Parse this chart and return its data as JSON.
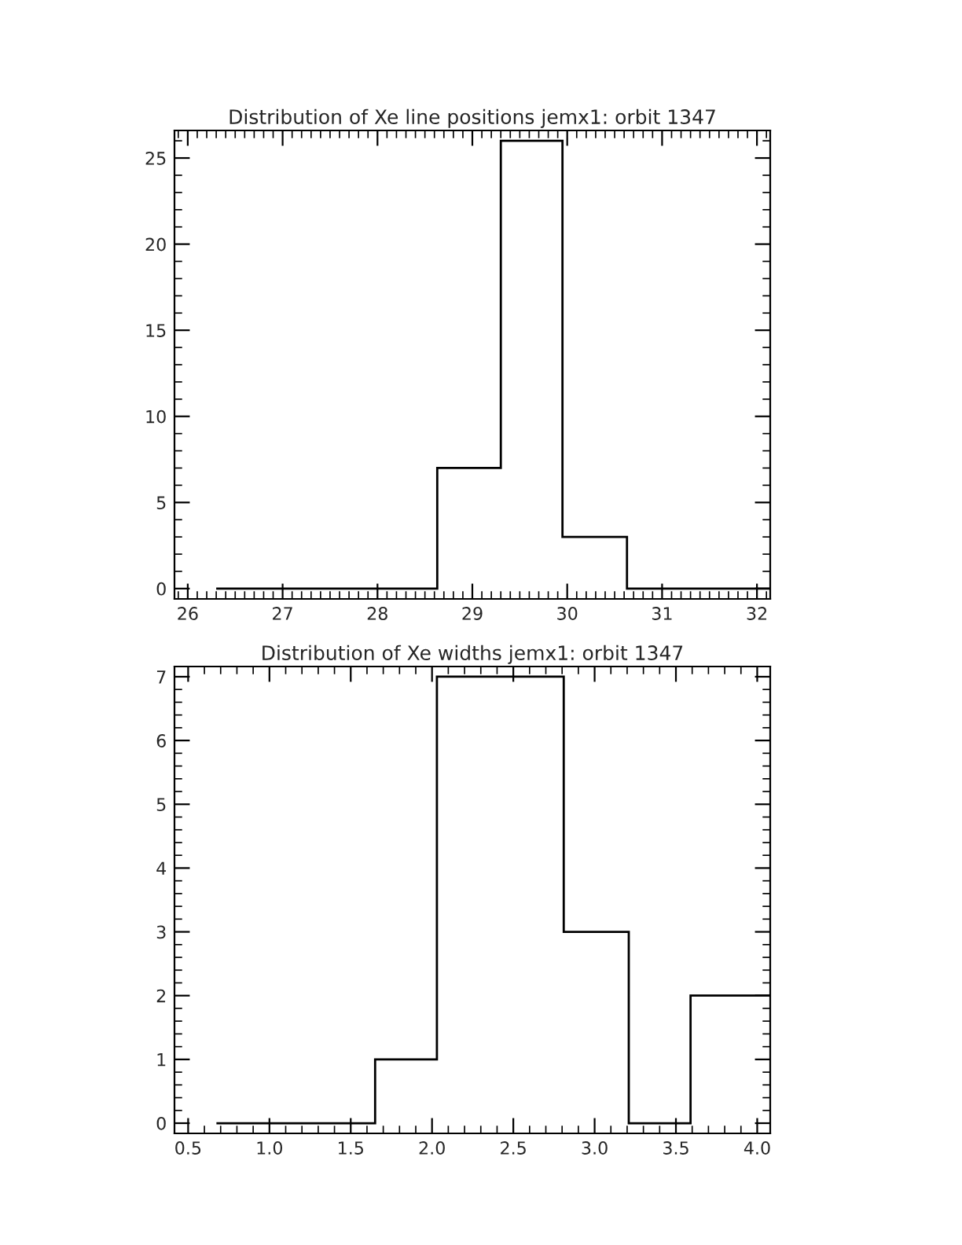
{
  "chart_data": [
    {
      "type": "histogram",
      "title": "Distribution of Xe line positions jemx1: orbit 1347",
      "bins": [
        26.3,
        28.63,
        29.3,
        29.95,
        30.63,
        32.14
      ],
      "values": [
        0,
        7,
        26,
        3,
        0
      ],
      "color": "#000000",
      "xlim": [
        25.86,
        32.14
      ],
      "ylim": [
        -0.6,
        26.6
      ],
      "xticks": [
        26,
        27,
        28,
        29,
        30,
        31,
        32
      ],
      "yticks": [
        0,
        5,
        10,
        15,
        20,
        25
      ],
      "grid": false,
      "legend": false
    },
    {
      "type": "histogram",
      "title": "Distribution of Xe widths jemx1: orbit 1347",
      "bins": [
        0.674,
        1.65,
        2.03,
        2.81,
        3.21,
        3.59,
        4.08
      ],
      "values": [
        0,
        1,
        7,
        3,
        0,
        2
      ],
      "color": "#000000",
      "xlim": [
        0.416,
        4.08
      ],
      "ylim": [
        -0.16,
        7.16
      ],
      "xticks": [
        {
          "value": 0.5,
          "label": "0.5"
        },
        {
          "value": 1.0,
          "label": "1.0"
        },
        {
          "value": 1.5,
          "label": "1.5"
        },
        {
          "value": 2.0,
          "label": "2.0"
        },
        {
          "value": 2.5,
          "label": "2.5"
        },
        {
          "value": 3.0,
          "label": "3.0"
        },
        {
          "value": 3.5,
          "label": "3.5"
        },
        {
          "value": 4.0,
          "label": "4.0"
        }
      ],
      "yticks": [
        0,
        1,
        2,
        3,
        4,
        5,
        6,
        7
      ],
      "grid": false,
      "legend": false
    }
  ]
}
